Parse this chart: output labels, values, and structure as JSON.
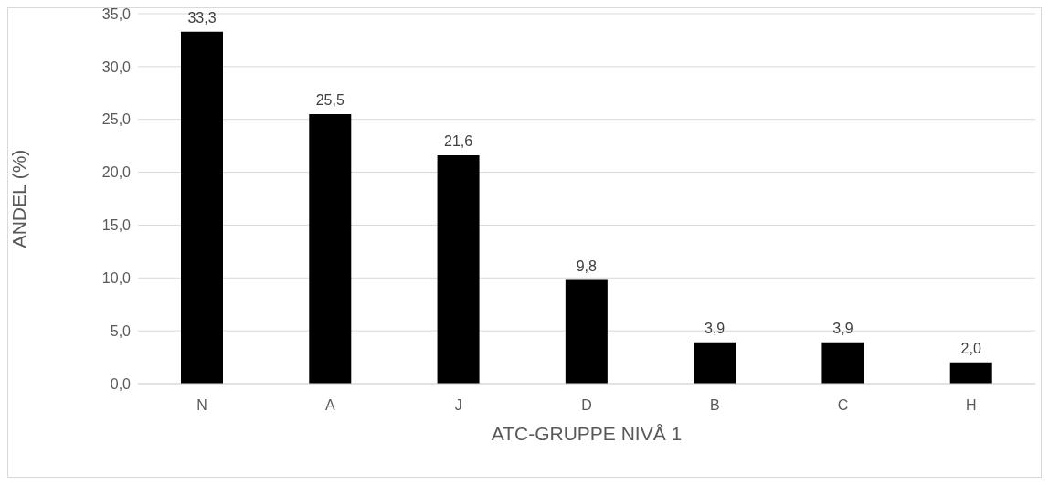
{
  "chart_data": {
    "type": "bar",
    "xlabel": "ATC-GRUPPE NIVÅ 1",
    "ylabel": "ANDEL (%)",
    "categories": [
      "N",
      "A",
      "J",
      "D",
      "B",
      "C",
      "H"
    ],
    "values": [
      33.3,
      25.5,
      21.6,
      9.8,
      3.9,
      3.9,
      2.0
    ],
    "value_labels": [
      "33,3",
      "25,5",
      "21,6",
      "9,8",
      "3,9",
      "3,9",
      "2,0"
    ],
    "color": "#000000",
    "ylim": [
      0,
      35
    ],
    "yticks": [
      {
        "value": 0,
        "label": "0,0"
      },
      {
        "value": 5,
        "label": "5,0"
      },
      {
        "value": 10,
        "label": "10,0"
      },
      {
        "value": 15,
        "label": "15,0"
      },
      {
        "value": 20,
        "label": "20,0"
      },
      {
        "value": 25,
        "label": "25,0"
      },
      {
        "value": 30,
        "label": "30,0"
      },
      {
        "value": 35,
        "label": "35,0"
      }
    ],
    "grid": "y"
  }
}
